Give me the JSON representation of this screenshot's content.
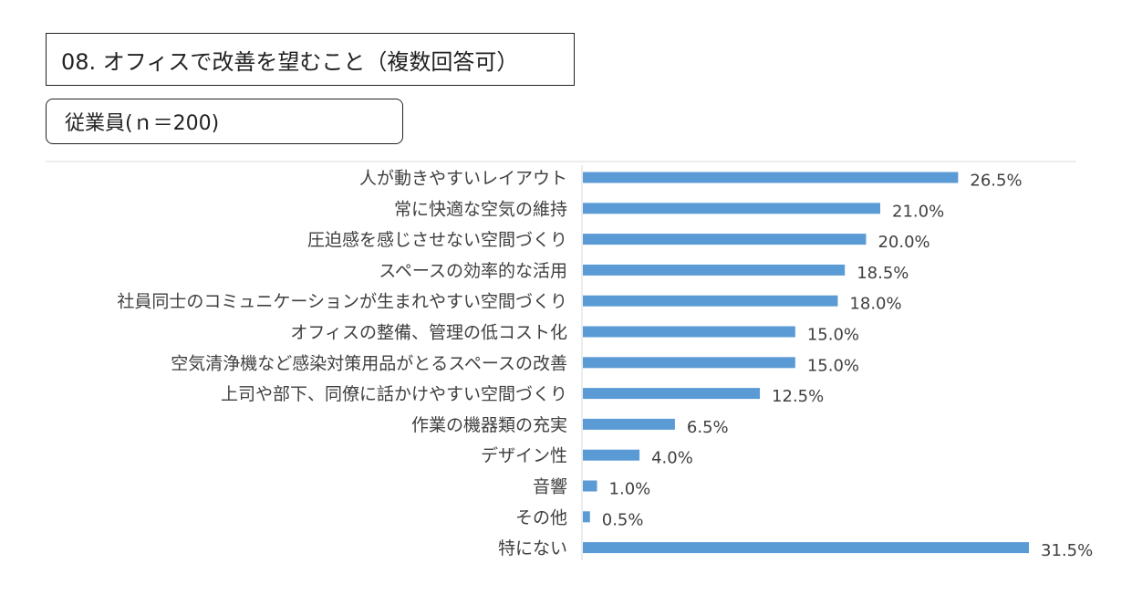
{
  "header": {
    "title": "08. オフィスで改善を望むこと（複数回答可）",
    "subtitle": "従業員(ｎ＝200)"
  },
  "colors": {
    "bar": "#5b9bd5",
    "axis": "#d9d9d9",
    "text": "#404040"
  },
  "chart_data": {
    "type": "bar",
    "orientation": "horizontal",
    "categories": [
      "人が動きやすいレイアウト",
      "常に快適な空気の維持",
      "圧迫感を感じさせない空間づくり",
      "スペースの効率的な活用",
      "社員同士のコミュニケーションが生まれやすい空間づくり",
      "オフィスの整備、管理の低コスト化",
      "空気清浄機など感染対策用品がとるスペースの改善",
      "上司や部下、同僚に話かけやすい空間づくり",
      "作業の機器類の充実",
      "デザイン性",
      "音響",
      "その他",
      "特にない"
    ],
    "values": [
      26.5,
      21.0,
      20.0,
      18.5,
      18.0,
      15.0,
      15.0,
      12.5,
      6.5,
      4.0,
      1.0,
      0.5,
      31.5
    ],
    "value_labels": [
      "26.5%",
      "21.0%",
      "20.0%",
      "18.5%",
      "18.0%",
      "15.0%",
      "15.0%",
      "12.5%",
      "6.5%",
      "4.0%",
      "1.0%",
      "0.5%",
      "31.5%"
    ],
    "unit": "%",
    "xlim": [
      0,
      31.5
    ],
    "grid": false,
    "legend": "none"
  }
}
